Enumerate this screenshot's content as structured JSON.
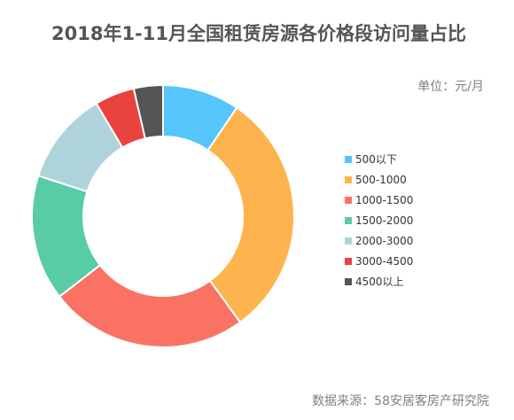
{
  "title": "2018年1-11月全国租赁房源各价格段访问量占比",
  "unit_label": "单位：元/月",
  "source_label": "数据来源：58安居客房产研究院",
  "chart_data": {
    "type": "pie",
    "donut": true,
    "title": "2018年1-11月全国租赁房源各价格段访问量占比",
    "legend_position": "right",
    "categories": [
      "500以下",
      "500-1000",
      "1000-1500",
      "1500-2000",
      "2000-3000",
      "3000-4500",
      "4500以上"
    ],
    "values": [
      9.5,
      30.5,
      24.5,
      15.5,
      11.5,
      4.9,
      3.6
    ],
    "colors": [
      "#56C5FB",
      "#FDB44F",
      "#FA7264",
      "#58CBA7",
      "#AED3DB",
      "#E8433F",
      "#555555"
    ]
  }
}
